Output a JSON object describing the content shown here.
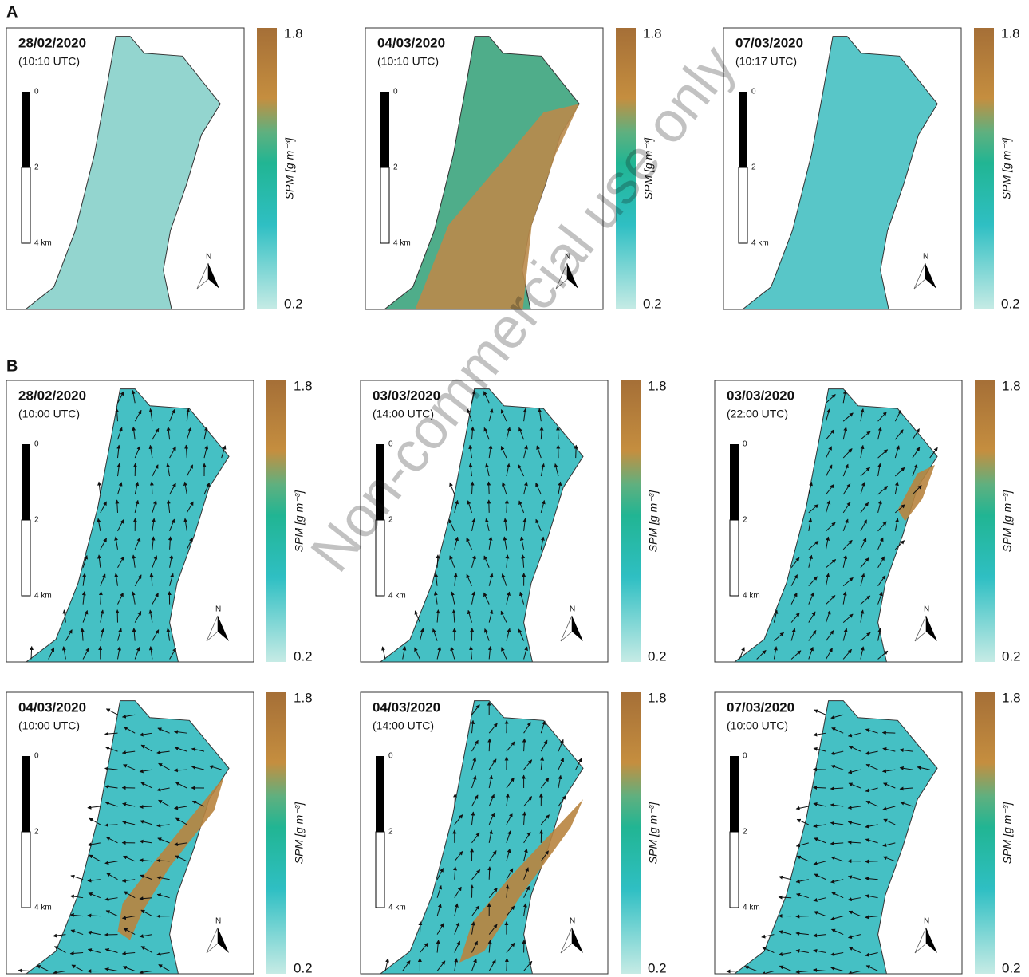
{
  "section_a": {
    "label": "A",
    "panels": [
      {
        "date": "28/02/2020",
        "time": "(10:10 UTC)"
      },
      {
        "date": "04/03/2020",
        "time": "(10:10 UTC)"
      },
      {
        "date": "07/03/2020",
        "time": "(10:17 UTC)"
      }
    ]
  },
  "section_b": {
    "label": "B",
    "panels": [
      {
        "date": "28/02/2020",
        "time": "(10:00 UTC)"
      },
      {
        "date": "03/03/2020",
        "time": "(14:00 UTC)"
      },
      {
        "date": "03/03/2020",
        "time": "(22:00 UTC)"
      },
      {
        "date": "04/03/2020",
        "time": "(10:00 UTC)"
      },
      {
        "date": "04/03/2020",
        "time": "(14:00 UTC)"
      },
      {
        "date": "07/03/2020",
        "time": "(10:00 UTC)"
      }
    ]
  },
  "scale_bar": {
    "labels": [
      "0",
      "2",
      "4 km"
    ]
  },
  "colorbar": {
    "max": 1.8,
    "min": 0.2,
    "label": "SPM [g m⁻³]"
  },
  "north": "N",
  "watermark": "Non-commercial use only"
}
